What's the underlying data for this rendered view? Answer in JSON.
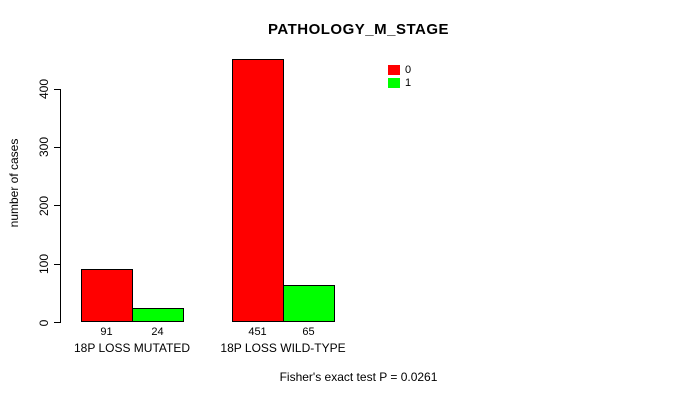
{
  "chart_data": {
    "type": "bar",
    "title": "PATHOLOGY_M_STAGE",
    "ylabel": "number of cases",
    "xlabel": "",
    "categories": [
      "18P LOSS MUTATED",
      "18P LOSS WILD-TYPE"
    ],
    "series": [
      {
        "name": "0",
        "color": "#FF0000",
        "values": [
          91,
          451
        ]
      },
      {
        "name": "1",
        "color": "#00FF00",
        "values": [
          24,
          65
        ]
      }
    ],
    "y_ticks": [
      0,
      100,
      200,
      300,
      400
    ],
    "ylim": [
      0,
      460
    ],
    "grid": false,
    "legend_position": "top-right",
    "bar_border_color": "#000000",
    "value_labels_shown": true,
    "annotation": "Fisher's exact test P = 0.0261"
  }
}
